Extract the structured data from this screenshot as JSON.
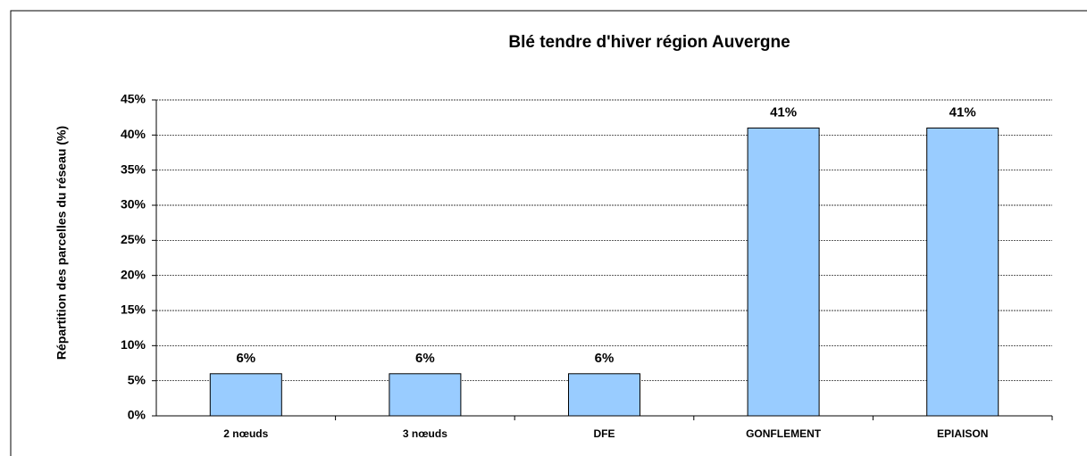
{
  "chart_data": {
    "type": "bar",
    "title": "Blé tendre d'hiver région Auvergne",
    "y_label": "Répartition des parcelles du réseau (%)",
    "categories": [
      "2 nœuds",
      "3 nœuds",
      "DFE",
      "GONFLEMENT",
      "EPIAISON"
    ],
    "values": [
      6,
      6,
      6,
      41,
      41
    ],
    "value_labels": [
      "6%",
      "6%",
      "6%",
      "41%",
      "41%"
    ],
    "color": "#99ccff",
    "ylim": [
      0,
      45
    ],
    "yticks": [
      {
        "value": 0,
        "label": "0%"
      },
      {
        "value": 5,
        "label": "5%"
      },
      {
        "value": 10,
        "label": "10%"
      },
      {
        "value": 15,
        "label": "15%"
      },
      {
        "value": 20,
        "label": "20%"
      },
      {
        "value": 25,
        "label": "25%"
      },
      {
        "value": 30,
        "label": "30%"
      },
      {
        "value": 35,
        "label": "35%"
      },
      {
        "value": 40,
        "label": "40%"
      },
      {
        "value": 45,
        "label": "45%"
      }
    ],
    "grid": true
  }
}
